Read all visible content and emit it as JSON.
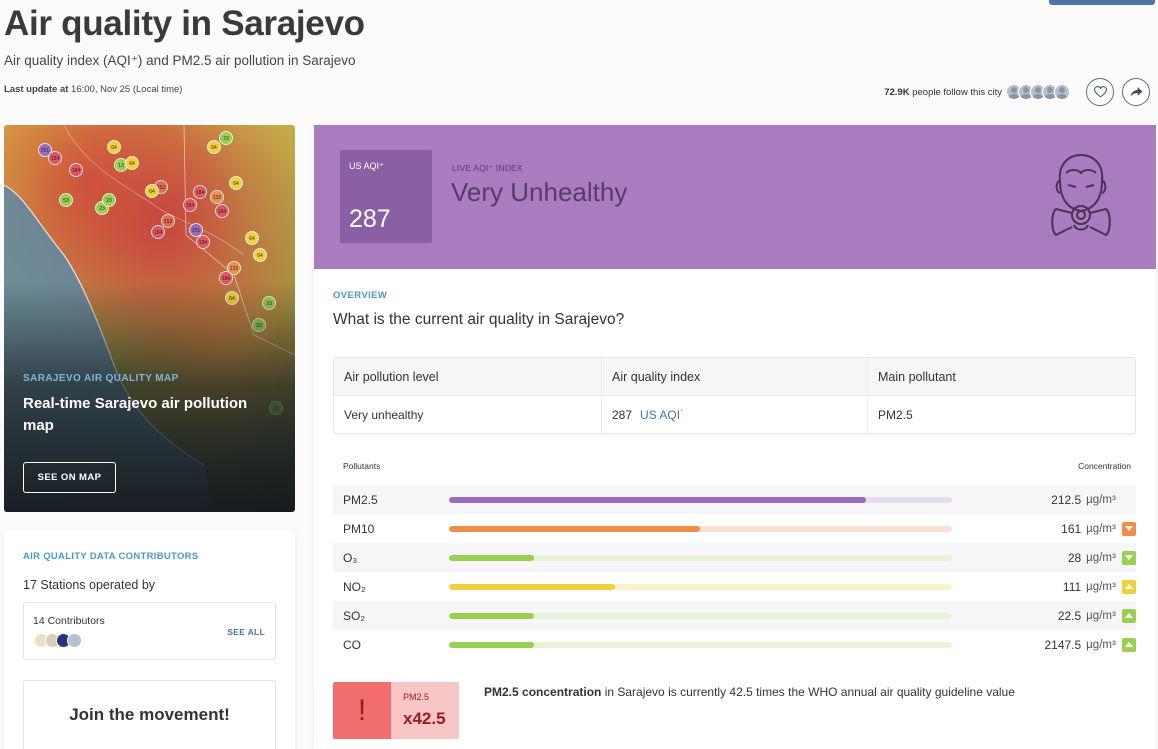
{
  "header": {
    "title": "Air quality in Sarajevo",
    "subtitle": "Air quality index (AQI⁺) and PM2.5 air pollution in Sarajevo",
    "last_update_label": "Last update at",
    "last_update_value": "16:00, Nov 25 (Local time)",
    "followers_count": "72.9K",
    "followers_text": "people follow this city"
  },
  "map_card": {
    "kicker": "SARAJEVO AIR QUALITY MAP",
    "title": "Real-time Sarajevo air pollution map",
    "button": "SEE ON MAP",
    "markers": [
      "201",
      "184",
      "184",
      "64",
      "13",
      "64",
      "23",
      "64",
      "53",
      "23",
      "23",
      "64",
      "152",
      "184",
      "132",
      "64",
      "184",
      "152",
      "184",
      "184",
      "201",
      "184",
      "64",
      "64",
      "132",
      "184",
      "64",
      "23",
      "23",
      "23"
    ]
  },
  "contributors": {
    "kicker": "AIR QUALITY DATA CONTRIBUTORS",
    "stations": "17 Stations operated by",
    "count": "14 Contributors",
    "see_all": "SEE ALL",
    "join_title": "Join the movement!"
  },
  "aqi": {
    "box_label": "US AQI⁺",
    "value": "287",
    "live_label": "LIVE AQI⁺ INDEX",
    "level": "Very Unhealthy",
    "color": "#a87cbe"
  },
  "overview": {
    "kicker": "OVERVIEW",
    "question": "What is the current air quality in Sarajevo?",
    "headers": [
      "Air pollution level",
      "Air quality index",
      "Main pollutant"
    ],
    "level": "Very unhealthy",
    "index_value": "287",
    "index_unit": "US AQI",
    "index_unit_sup": "⁺",
    "main_pollutant": "PM2.5"
  },
  "pollutants": {
    "header_left": "Pollutants",
    "header_right": "Concentration",
    "unit": "µg/m³",
    "items": [
      {
        "name": "PM2.5",
        "value": "212.5",
        "level": 0.83,
        "color": "#9b6bbd",
        "track": "#e8dcef",
        "trend": ""
      },
      {
        "name": "PM10",
        "value": "161",
        "level": 0.5,
        "color": "#ef8d4a",
        "track": "#fbe1d3",
        "trend": "down",
        "trend_color": "#ef8d4a"
      },
      {
        "name": "O₃",
        "value": "28",
        "level": 0.17,
        "color": "#9ad04f",
        "track": "#e6f3d6",
        "trend": "down",
        "trend_color": "#9ad04f"
      },
      {
        "name": "NO₂",
        "value": "111",
        "level": 0.33,
        "color": "#f2cf3c",
        "track": "#fcf2cd",
        "trend": "up",
        "trend_color": "#f2cf3c"
      },
      {
        "name": "SO₂",
        "value": "22.5",
        "level": 0.17,
        "color": "#9ad04f",
        "track": "#e6f3d6",
        "trend": "up",
        "trend_color": "#9ad04f"
      },
      {
        "name": "CO",
        "value": "2147.5",
        "level": 0.17,
        "color": "#9ad04f",
        "track": "#e6f3d6",
        "trend": "up",
        "trend_color": "#9ad04f"
      }
    ]
  },
  "who": {
    "label": "PM2.5",
    "multiplier": "x42.5",
    "text_bold": "PM2.5 concentration",
    "text_rest": " in Sarajevo is currently 42.5 times the WHO annual air quality guideline value"
  }
}
